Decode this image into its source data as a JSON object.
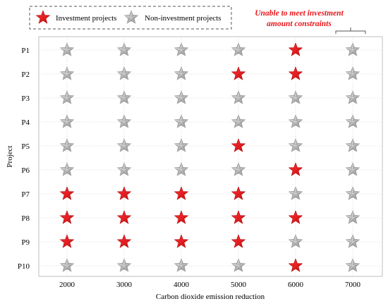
{
  "chart_data": {
    "type": "scatter",
    "xlabel": "Carbon dioxide emission reduction",
    "ylabel": "Project",
    "x_categories": [
      "2000",
      "3000",
      "4000",
      "5000",
      "6000",
      "7000"
    ],
    "y_categories": [
      "P1",
      "P2",
      "P3",
      "P4",
      "P5",
      "P6",
      "P7",
      "P8",
      "P9",
      "P10"
    ],
    "legend": {
      "position": "top-left",
      "entries": [
        {
          "label": "Investment projects",
          "color": "#e8161b",
          "marker": "star"
        },
        {
          "label": "Non-investment projects",
          "color": "#a6a6a6",
          "marker": "star"
        }
      ]
    },
    "annotation": {
      "text_lines": [
        "Unable to meet investment",
        "amount constraints"
      ],
      "target_column": "7000",
      "color": "#e8161b"
    },
    "invested": {
      "2000": [
        "P7",
        "P8",
        "P9"
      ],
      "3000": [
        "P7",
        "P8",
        "P9"
      ],
      "4000": [
        "P7",
        "P8",
        "P9"
      ],
      "5000": [
        "P2",
        "P5",
        "P7",
        "P8",
        "P9"
      ],
      "6000": [
        "P1",
        "P2",
        "P6",
        "P8",
        "P10"
      ],
      "7000": []
    },
    "grid": true,
    "grid_style": "dotted"
  }
}
